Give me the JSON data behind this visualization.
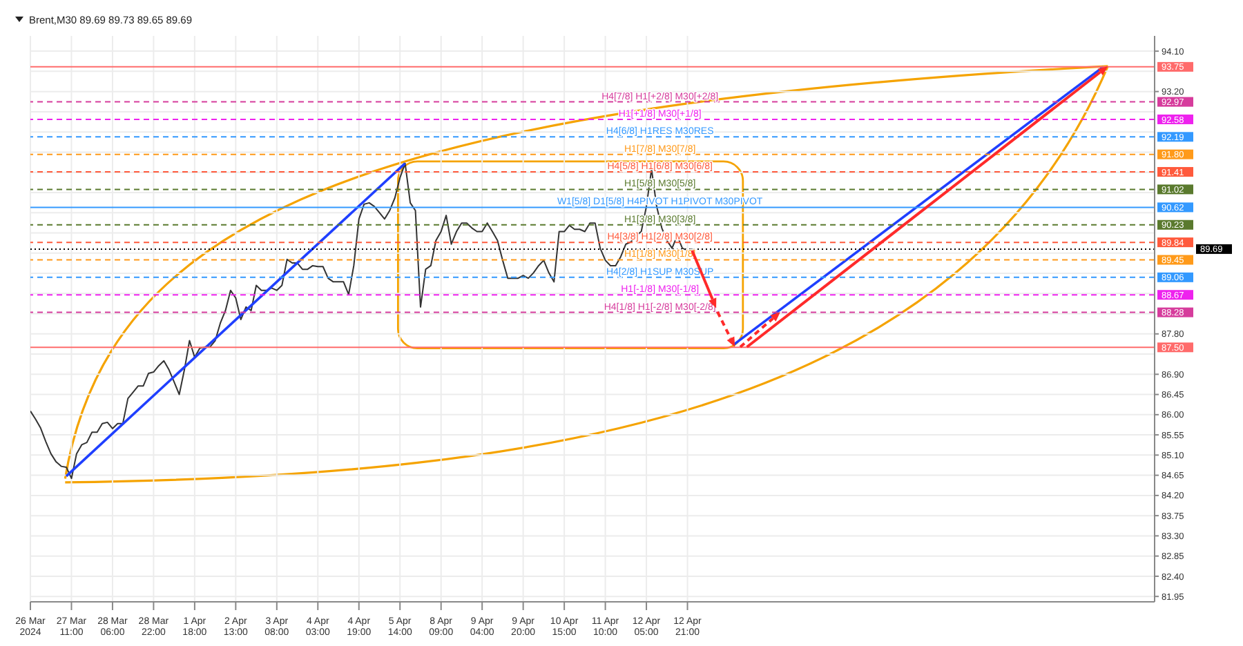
{
  "chart_data": {
    "type": "line",
    "title": "Brent,M30 89.69 89.73 89.65 89.69",
    "categories": [
      "26 Mar 2024",
      null,
      null,
      null,
      null,
      null,
      null,
      null,
      "27 Mar 11:00",
      null,
      null,
      null,
      null,
      null,
      null,
      null,
      "28 Mar 06:00",
      null,
      null,
      null,
      null,
      null,
      null,
      null,
      "28 Mar 22:00",
      null,
      null,
      null,
      null,
      null,
      null,
      null,
      "1 Apr 18:00",
      null,
      null,
      null,
      null,
      null,
      null,
      null,
      "2 Apr 13:00",
      null,
      null,
      null,
      null,
      null,
      null,
      null,
      "3 Apr 08:00",
      null,
      null,
      null,
      null,
      null,
      null,
      null,
      "4 Apr 03:00",
      null,
      null,
      null,
      null,
      null,
      null,
      null,
      "4 Apr 19:00",
      null,
      null,
      null,
      null,
      null,
      null,
      null,
      "5 Apr 14:00",
      null,
      null,
      null,
      null,
      null,
      null,
      null,
      "8 Apr 09:00",
      null,
      null,
      null,
      null,
      null,
      null,
      null,
      "9 Apr 04:00",
      null,
      null,
      null,
      null,
      null,
      null,
      null,
      "9 Apr 20:00",
      null,
      null,
      null,
      null,
      null,
      null,
      null,
      "10 Apr 15:00",
      null,
      null,
      null,
      null,
      null,
      null,
      null,
      "11 Apr 10:00",
      null,
      null,
      null,
      null,
      null,
      null,
      null,
      "12 Apr 05:00",
      null,
      null,
      null,
      null,
      null,
      null,
      null,
      "12 Apr 21:00",
      null,
      null,
      null,
      null,
      null,
      null,
      null,
      null,
      null,
      null,
      null,
      null,
      null,
      null,
      null,
      null,
      null,
      null,
      null,
      null,
      null,
      null,
      null,
      null,
      null,
      null,
      null,
      null,
      null,
      null,
      null,
      null,
      null,
      null,
      null,
      null,
      null,
      null,
      null,
      null,
      null,
      null,
      null,
      null,
      null,
      null,
      null,
      null,
      null,
      null,
      null,
      null,
      null,
      null,
      null,
      null,
      null,
      null,
      null,
      null,
      null,
      null,
      null,
      null,
      null,
      null,
      null,
      null,
      null,
      null,
      null,
      null,
      null,
      null,
      null,
      null,
      null,
      null,
      null,
      null,
      null,
      null,
      null,
      null,
      null,
      null,
      null,
      null,
      null,
      null,
      null
    ],
    "series": [
      {
        "color": "#333333",
        "values": [
          86.08,
          85.9,
          85.7,
          85.4,
          85.13,
          84.95,
          84.85,
          84.83,
          84.58,
          85.13,
          85.33,
          85.38,
          85.61,
          85.61,
          85.8,
          85.83,
          85.69,
          85.8,
          85.8,
          86.36,
          86.5,
          86.64,
          86.64,
          86.92,
          86.95,
          87.09,
          87.2,
          87.0,
          86.73,
          86.45,
          87.0,
          87.65,
          87.28,
          87.48,
          87.51,
          87.51,
          87.65,
          88.04,
          88.32,
          88.77,
          88.6,
          88.12,
          88.4,
          88.32,
          88.88,
          88.77,
          88.77,
          88.82,
          88.77,
          88.88,
          89.46,
          89.38,
          89.38,
          89.24,
          89.24,
          89.32,
          89.3,
          89.3,
          89.04,
          88.96,
          88.96,
          88.96,
          88.68,
          89.32,
          90.36,
          90.69,
          90.72,
          90.64,
          90.5,
          90.36,
          90.55,
          90.83,
          91.28,
          91.6,
          90.72,
          90.55,
          88.4,
          89.24,
          89.32,
          89.88,
          90.08,
          90.44,
          89.8,
          90.08,
          90.27,
          90.27,
          90.16,
          90.08,
          90.08,
          90.27,
          90.08,
          89.88,
          89.44,
          89.04,
          89.04,
          89.04,
          89.1,
          89.04,
          89.16,
          89.32,
          89.44,
          89.16,
          88.96,
          90.08,
          90.08,
          90.22,
          90.13,
          90.13,
          90.08,
          90.27,
          90.27,
          89.71,
          89.44,
          89.32,
          89.32,
          89.52,
          89.8,
          89.85,
          89.99,
          90.08,
          90.64,
          91.47,
          90.64,
          90.16,
          89.88,
          89.71,
          89.99,
          89.71,
          89.66,
          89.69,
          null,
          null,
          null,
          null,
          null,
          null,
          null,
          null,
          null,
          null,
          null,
          null,
          null,
          null,
          null,
          null,
          null,
          null,
          null,
          null,
          null,
          null,
          null,
          null,
          null,
          null,
          null,
          null,
          null,
          null,
          null,
          null,
          null,
          null,
          null,
          null,
          null,
          null,
          null,
          null,
          null,
          null,
          null,
          null,
          null,
          null,
          null,
          null,
          null,
          null,
          null,
          null,
          null,
          null,
          null,
          null,
          null,
          null,
          null,
          null,
          null,
          null,
          null,
          null,
          null,
          null,
          null,
          null,
          null,
          null,
          null,
          null,
          null,
          null,
          null,
          null,
          null,
          null,
          null,
          null,
          null,
          null,
          null,
          null,
          null,
          null,
          null,
          null,
          null,
          null
        ]
      },
      {
        "color": "#1f3fff",
        "values": [
          null,
          null,
          null,
          null,
          null,
          null,
          null,
          84.63,
          null,
          null,
          null,
          null,
          null,
          null,
          null,
          null,
          null,
          null,
          null,
          null,
          null,
          null,
          null,
          null,
          null,
          null,
          null,
          null,
          null,
          null,
          null,
          null,
          null,
          null,
          null,
          null,
          null,
          null,
          null,
          null,
          null,
          null,
          null,
          null,
          null,
          null,
          null,
          null,
          null,
          null,
          null,
          null,
          null,
          null,
          null,
          null,
          null,
          null,
          null,
          null,
          null,
          null,
          null,
          null,
          null,
          null,
          null,
          null,
          null,
          null,
          null,
          null,
          null,
          91.6,
          null,
          null,
          null,
          null,
          null,
          null,
          null,
          null,
          null,
          null,
          null,
          null,
          null,
          null,
          null,
          null,
          null,
          null,
          null,
          null,
          null,
          null,
          null,
          null,
          null,
          null,
          null,
          null,
          null,
          null,
          null,
          null,
          null,
          null,
          null,
          null,
          null,
          null,
          null,
          null,
          null,
          null,
          null,
          null,
          null,
          null,
          null,
          null,
          null,
          null,
          null,
          null,
          null,
          null,
          null,
          null,
          null,
          null,
          null,
          null,
          null,
          null,
          null,
          null,
          null,
          null,
          null,
          null,
          null,
          null,
          null,
          null,
          null,
          null,
          null,
          null,
          null,
          null,
          null,
          null,
          null,
          null,
          null,
          null,
          null,
          null,
          null,
          null,
          null,
          null,
          null,
          null,
          null,
          null,
          null,
          null,
          null,
          null,
          null,
          null,
          null,
          null,
          null,
          null,
          null,
          null,
          null,
          null,
          null,
          null,
          null,
          null,
          null,
          null,
          null,
          null,
          null,
          null,
          null,
          null,
          null,
          null,
          null,
          null,
          null,
          null,
          null,
          null,
          null,
          null,
          null,
          null,
          null,
          null,
          null,
          null,
          null,
          null,
          null,
          null,
          null,
          null,
          null,
          null,
          null,
          null
        ]
      },
      {
        "color": "#1f3fff",
        "values": [
          null,
          null,
          null,
          null,
          null,
          null,
          null,
          null,
          null,
          null,
          null,
          null,
          null,
          null,
          null,
          null,
          null,
          null,
          null,
          null,
          null,
          null,
          null,
          null,
          null,
          null,
          null,
          null,
          null,
          null,
          null,
          null,
          null,
          null,
          null,
          null,
          null,
          null,
          null,
          null,
          null,
          null,
          null,
          null,
          null,
          null,
          null,
          null,
          null,
          null,
          null,
          null,
          null,
          null,
          null,
          null,
          null,
          null,
          null,
          null,
          null,
          null,
          null,
          null,
          null,
          null,
          null,
          null,
          null,
          null,
          null,
          null,
          null,
          null,
          null,
          null,
          null,
          null,
          null,
          null,
          null,
          null,
          null,
          null,
          null,
          null,
          null,
          null,
          null,
          null,
          null,
          null,
          null,
          null,
          null,
          null,
          null,
          null,
          null,
          null,
          null,
          null,
          null,
          null,
          null,
          null,
          null,
          null,
          null,
          null,
          null,
          null,
          null,
          null,
          null,
          null,
          null,
          null,
          null,
          null,
          null,
          null,
          null,
          null,
          null,
          null,
          null,
          null,
          null,
          null,
          null,
          null,
          null,
          null,
          null,
          null,
          null,
          87.56,
          null,
          null,
          null,
          null,
          null,
          null,
          null,
          null,
          null,
          null,
          null,
          null,
          null,
          null,
          null,
          null,
          null,
          null,
          null,
          null,
          null,
          null,
          null,
          null,
          null,
          null,
          null,
          null,
          null,
          null,
          null,
          null,
          null,
          null,
          null,
          null,
          null,
          null,
          null,
          null,
          null,
          null,
          null,
          null,
          null,
          null,
          null,
          null,
          null,
          null,
          null,
          null,
          null,
          null,
          null,
          null,
          null,
          null,
          null,
          null,
          null,
          null,
          null,
          null,
          null,
          null,
          null,
          null,
          null,
          null,
          null,
          93.75,
          null,
          null,
          null,
          null,
          null,
          null,
          null,
          null,
          null,
          null
        ]
      }
    ],
    "ylim": [
      81.83,
      94.44
    ],
    "yticks": [
      {
        "value": 81.95,
        "label": "81.95"
      },
      {
        "value": 82.4,
        "label": "82.40"
      },
      {
        "value": 82.85,
        "label": "82.85"
      },
      {
        "value": 83.3,
        "label": "83.30"
      },
      {
        "value": 83.75,
        "label": "83.75"
      },
      {
        "value": 84.2,
        "label": "84.20"
      },
      {
        "value": 84.65,
        "label": "84.65"
      },
      {
        "value": 85.1,
        "label": "85.10"
      },
      {
        "value": 85.55,
        "label": "85.55"
      },
      {
        "value": 86.0,
        "label": "86.00"
      },
      {
        "value": 86.45,
        "label": "86.45"
      },
      {
        "value": 86.9,
        "label": "86.90"
      },
      {
        "value": 87.35,
        "label": null
      },
      {
        "value": 87.8,
        "label": "87.80"
      },
      {
        "value": 88.25,
        "label": null
      },
      {
        "value": 88.7,
        "label": null
      },
      {
        "value": 89.15,
        "label": null
      },
      {
        "value": 89.6,
        "label": null
      },
      {
        "value": 90.05,
        "label": null
      },
      {
        "value": 90.5,
        "label": null
      },
      {
        "value": 90.95,
        "label": null
      },
      {
        "value": 91.4,
        "label": null
      },
      {
        "value": 91.85,
        "label": null
      },
      {
        "value": 92.3,
        "label": null
      },
      {
        "value": 92.75,
        "label": null
      },
      {
        "value": 93.2,
        "label": "93.20"
      },
      {
        "value": 93.65,
        "label": null
      },
      {
        "value": 94.1,
        "label": "94.10"
      }
    ],
    "grid": true,
    "annotations": [
      "93.75",
      "92.97",
      "92.58",
      "92.19",
      "91.80",
      "91.41",
      "91.02",
      "90.62",
      "90.23",
      "89.84",
      "89.69",
      "89.45",
      "89.06",
      "88.67",
      "88.28",
      "87.50"
    ],
    "ref_lines": [
      {
        "axis": "y",
        "value": 93.75,
        "color": "#ff6b6b",
        "line_style": "solid"
      },
      {
        "axis": "y",
        "value": 92.97,
        "label": "H4[7/8] H1[+2/8] M30[+2/8]",
        "color": "#d63c9c",
        "line_style": "dashed"
      },
      {
        "axis": "y",
        "value": 92.58,
        "label": "H1[+1/8] M30[+1/8]",
        "color": "#ee22ee",
        "line_style": "dashed"
      },
      {
        "axis": "y",
        "value": 92.19,
        "label": "H4[6/8] H1RES M30RES",
        "color": "#3399ff",
        "line_style": "dashed"
      },
      {
        "axis": "y",
        "value": 91.8,
        "label": "H1[7/8] M30[7/8]",
        "color": "#ff9a1a",
        "line_style": "dashed"
      },
      {
        "axis": "y",
        "value": 91.41,
        "label": "H4[5/8] H1[6/8] M30[6/8]",
        "color": "#ff5a3c",
        "line_style": "dashed"
      },
      {
        "axis": "y",
        "value": 91.02,
        "label": "H1[5/8] M30[5/8]",
        "color": "#5a7a2e",
        "line_style": "dashed"
      },
      {
        "axis": "y",
        "value": 90.62,
        "label": "W1[5/8] D1[5/8] H4PIVOT H1PIVOT M30PIVOT",
        "color": "#3399ff",
        "line_style": "solid"
      },
      {
        "axis": "y",
        "value": 90.23,
        "label": "H1[3/8] M30[3/8]",
        "color": "#5a7a2e",
        "line_style": "dashed"
      },
      {
        "axis": "y",
        "value": 89.84,
        "label": "H4[3/8] H1[2/8] M30[2/8]",
        "color": "#ff5a3c",
        "line_style": "dashed"
      },
      {
        "axis": "y",
        "value": 89.69,
        "color": "#000000",
        "line_style": "dotted"
      },
      {
        "axis": "y",
        "value": 89.45,
        "label": "H1[1/8] M30[1/8]",
        "color": "#ff9a1a",
        "line_style": "dashed"
      },
      {
        "axis": "y",
        "value": 89.06,
        "label": "H4[2/8] H1SUP M30SUP",
        "color": "#3399ff",
        "line_style": "dashed"
      },
      {
        "axis": "y",
        "value": 88.67,
        "label": "H1[-1/8] M30[-1/8]",
        "color": "#ee22ee",
        "line_style": "dashed"
      },
      {
        "axis": "y",
        "value": 88.28,
        "label": "H4[1/8] H1[-2/8] M30[-2/8]",
        "color": "#d63c9c",
        "line_style": "dashed"
      },
      {
        "axis": "y",
        "value": 87.5,
        "color": "#ff6b6b",
        "line_style": "solid"
      }
    ]
  }
}
